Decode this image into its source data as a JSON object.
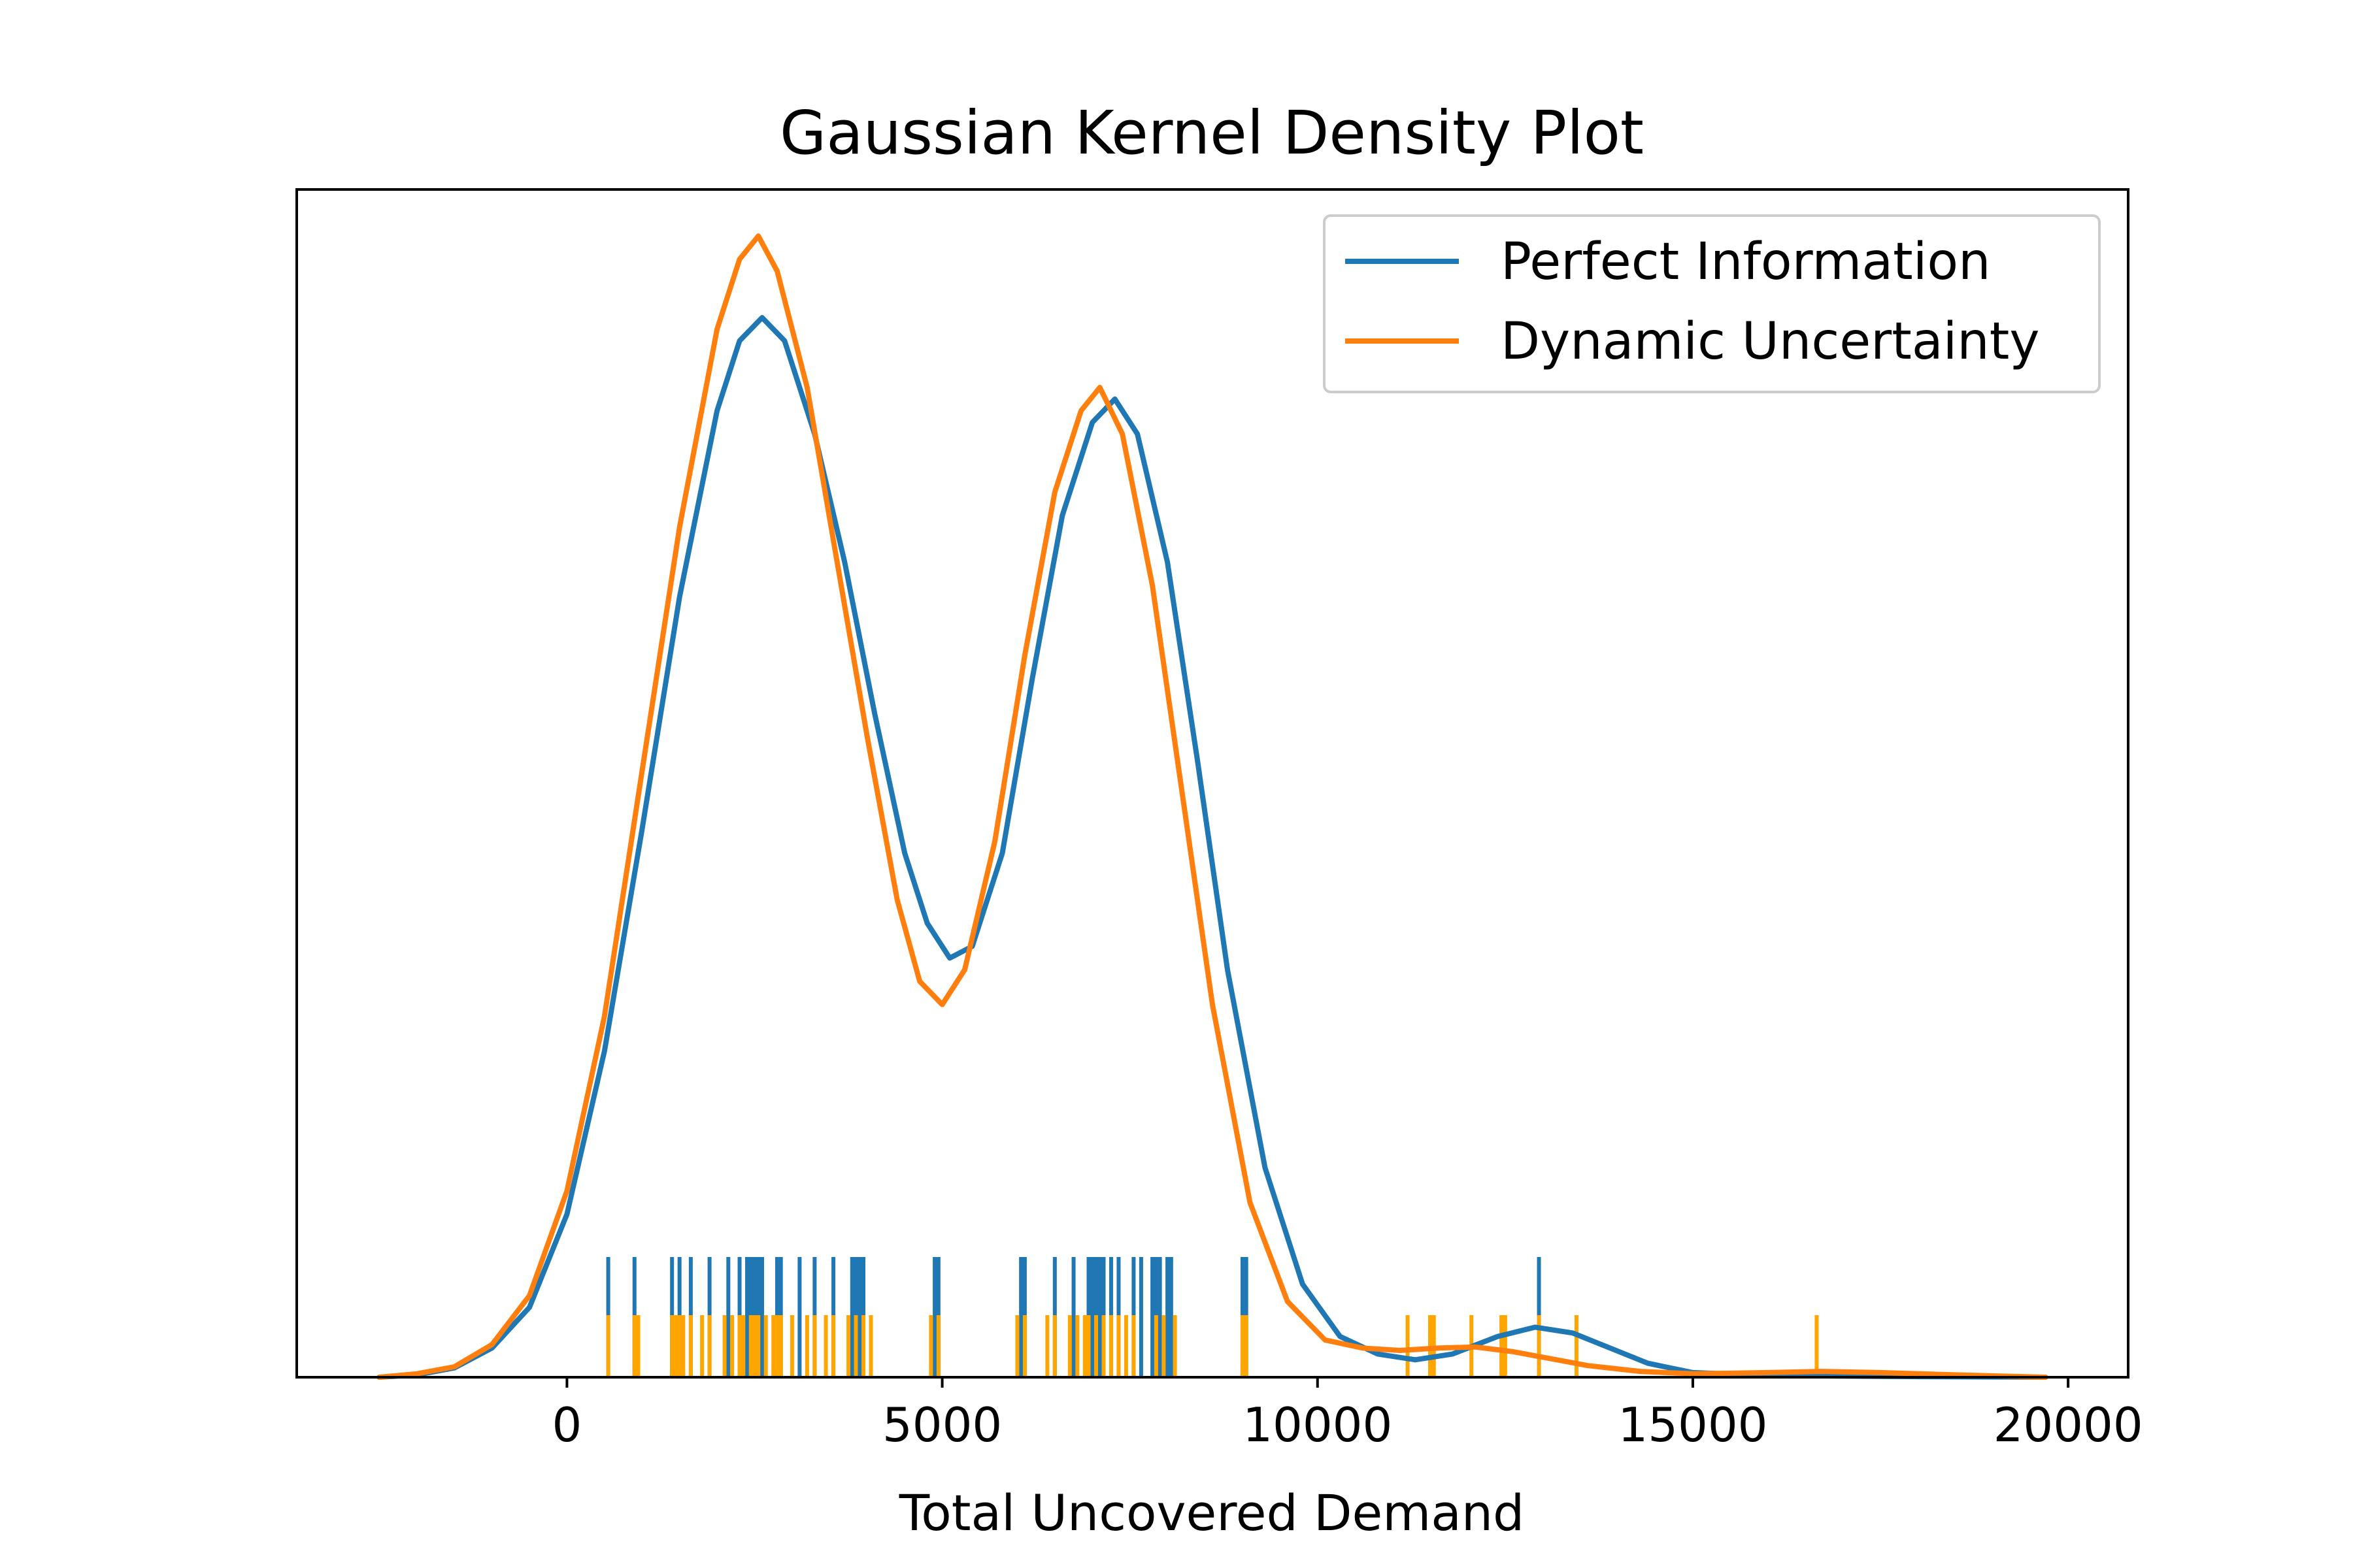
{
  "chart_data": {
    "type": "line",
    "title": "Gaussian Kernel Density Plot",
    "xlabel": "Total Uncovered Demand",
    "ylabel": "",
    "xlim": [
      -3600,
      20800
    ],
    "ylim": [
      0,
      1.02
    ],
    "xticks": [
      0,
      5000,
      10000,
      15000,
      20000
    ],
    "grid": false,
    "legend_position": "top-right",
    "series": [
      {
        "name": "Perfect Information",
        "color": "#1f77b4",
        "points": [
          [
            -2500,
            0.0
          ],
          [
            -2000,
            0.002
          ],
          [
            -1500,
            0.008
          ],
          [
            -1000,
            0.025
          ],
          [
            -500,
            0.06
          ],
          [
            0,
            0.14
          ],
          [
            500,
            0.28
          ],
          [
            1000,
            0.47
          ],
          [
            1500,
            0.67
          ],
          [
            2000,
            0.83
          ],
          [
            2300,
            0.89
          ],
          [
            2600,
            0.91
          ],
          [
            2900,
            0.89
          ],
          [
            3300,
            0.81
          ],
          [
            3700,
            0.7
          ],
          [
            4100,
            0.57
          ],
          [
            4500,
            0.45
          ],
          [
            4800,
            0.39
          ],
          [
            5100,
            0.36
          ],
          [
            5400,
            0.37
          ],
          [
            5800,
            0.45
          ],
          [
            6200,
            0.6
          ],
          [
            6600,
            0.74
          ],
          [
            7000,
            0.82
          ],
          [
            7300,
            0.84
          ],
          [
            7600,
            0.81
          ],
          [
            8000,
            0.7
          ],
          [
            8400,
            0.53
          ],
          [
            8800,
            0.35
          ],
          [
            9300,
            0.18
          ],
          [
            9800,
            0.08
          ],
          [
            10300,
            0.035
          ],
          [
            10800,
            0.02
          ],
          [
            11300,
            0.015
          ],
          [
            11800,
            0.02
          ],
          [
            12400,
            0.035
          ],
          [
            12900,
            0.043
          ],
          [
            13400,
            0.038
          ],
          [
            13900,
            0.025
          ],
          [
            14400,
            0.012
          ],
          [
            15000,
            0.004
          ],
          [
            16000,
            0.0015
          ],
          [
            17000,
            0.001
          ],
          [
            18000,
            0.0005
          ],
          [
            19700,
            0.0
          ]
        ]
      },
      {
        "name": "Dynamic Uncertainty",
        "color": "#ff7f0e",
        "points": [
          [
            -2500,
            0.0
          ],
          [
            -2000,
            0.003
          ],
          [
            -1500,
            0.009
          ],
          [
            -1000,
            0.028
          ],
          [
            -500,
            0.07
          ],
          [
            0,
            0.16
          ],
          [
            500,
            0.31
          ],
          [
            1000,
            0.52
          ],
          [
            1500,
            0.73
          ],
          [
            2000,
            0.9
          ],
          [
            2300,
            0.96
          ],
          [
            2550,
            0.98
          ],
          [
            2800,
            0.95
          ],
          [
            3200,
            0.85
          ],
          [
            3600,
            0.7
          ],
          [
            4000,
            0.55
          ],
          [
            4400,
            0.41
          ],
          [
            4700,
            0.34
          ],
          [
            5000,
            0.32
          ],
          [
            5300,
            0.35
          ],
          [
            5700,
            0.46
          ],
          [
            6100,
            0.62
          ],
          [
            6500,
            0.76
          ],
          [
            6850,
            0.83
          ],
          [
            7100,
            0.85
          ],
          [
            7400,
            0.81
          ],
          [
            7800,
            0.68
          ],
          [
            8200,
            0.5
          ],
          [
            8600,
            0.32
          ],
          [
            9100,
            0.15
          ],
          [
            9600,
            0.065
          ],
          [
            10100,
            0.032
          ],
          [
            10600,
            0.025
          ],
          [
            11100,
            0.023
          ],
          [
            11600,
            0.025
          ],
          [
            12100,
            0.026
          ],
          [
            12600,
            0.022
          ],
          [
            13100,
            0.016
          ],
          [
            13600,
            0.01
          ],
          [
            14300,
            0.005
          ],
          [
            15000,
            0.003
          ],
          [
            16000,
            0.004
          ],
          [
            16700,
            0.005
          ],
          [
            17500,
            0.004
          ],
          [
            18500,
            0.002
          ],
          [
            19700,
            0.0
          ]
        ]
      }
    ],
    "rug": [
      {
        "name": "Perfect Information",
        "color": "#1f77b4",
        "values": [
          550,
          900,
          1400,
          1500,
          1650,
          1900,
          2150,
          2300,
          2400,
          2450,
          2500,
          2550,
          2600,
          2800,
          2850,
          3100,
          3300,
          3550,
          3800,
          3850,
          3900,
          3950,
          4900,
          4950,
          6050,
          6100,
          6500,
          6750,
          6950,
          7000,
          7050,
          7100,
          7150,
          7250,
          7350,
          7550,
          7650,
          7800,
          7850,
          7900,
          8000,
          8050,
          9000,
          9050,
          12950
        ]
      },
      {
        "name": "Dynamic Uncertainty",
        "color": "#ffa500",
        "values": [
          550,
          900,
          950,
          1400,
          1450,
          1500,
          1550,
          1650,
          1800,
          1900,
          2100,
          2200,
          2300,
          2350,
          2450,
          2500,
          2550,
          2650,
          2750,
          2800,
          2850,
          3000,
          3200,
          3300,
          3450,
          3550,
          3750,
          3850,
          3950,
          4050,
          4850,
          4950,
          6000,
          6100,
          6400,
          6500,
          6700,
          6800,
          6900,
          6950,
          7050,
          7150,
          7250,
          7350,
          7450,
          7550,
          7850,
          7950,
          8100,
          9000,
          9050,
          11200,
          11500,
          11550,
          12050,
          12450,
          12500,
          12950,
          13450,
          16650
        ]
      }
    ]
  }
}
